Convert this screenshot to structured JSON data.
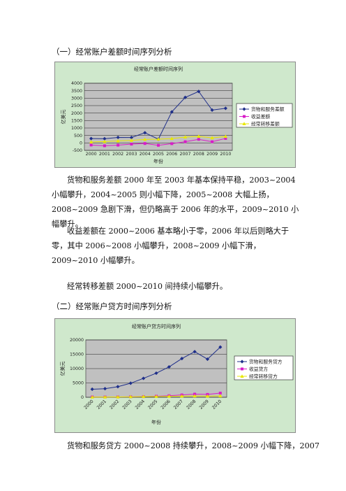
{
  "section1": {
    "heading": "（一）经常账户差额时间序列分析",
    "paragraphs": [
      "货物和服务差额 2000 年至 2003 年基本保持平稳，2003~2004 小幅攀升，2004~2005 则小幅下降，2005~2008 大幅上扬，2008~2009 急剧下滑，但仍略高于 2006 年的水平，2009~2010 小幅攀升。",
      "收益差额在 2000~2006 基本略小于零，2006 年以后则略大于零，其中 2006~2008 小幅攀升，2008~2009 小幅下滑，2009~2010 小幅攀升。",
      "经常转移差额 2000~2010 间持续小幅攀升。"
    ]
  },
  "section2": {
    "heading": "（二）经常账户贷方时间序列分析",
    "paragraphs": [
      "货物和服务贷方 2000~2008 持续攀升，2008~2009 小幅下降，2007"
    ]
  },
  "chart_data": [
    {
      "type": "line",
      "title": "经常账户差额时间序列",
      "xlabel": "年份",
      "ylabel": "亿美元",
      "x": [
        "2000",
        "2001",
        "2002",
        "2003",
        "2004",
        "2005",
        "2006",
        "2007",
        "2008",
        "2009",
        "2010"
      ],
      "ylim": [
        -500,
        4000
      ],
      "yticks": [
        -500,
        0,
        500,
        1000,
        1500,
        2000,
        2500,
        3000,
        3500,
        4000
      ],
      "grid": true,
      "legend": "right",
      "series": [
        {
          "name": "货物和服务差额",
          "color": "#1f2f8a",
          "marker": "diamond",
          "values": [
            290,
            280,
            370,
            360,
            680,
            250,
            2080,
            3050,
            3450,
            2200,
            2320
          ]
        },
        {
          "name": "收益差额",
          "color": "#d81cc8",
          "marker": "square",
          "values": [
            -140,
            -190,
            -150,
            -80,
            -40,
            -160,
            -50,
            80,
            240,
            80,
            300
          ]
        },
        {
          "name": "经常转移差额",
          "color": "#e8e800",
          "marker": "triangle",
          "values": [
            60,
            90,
            130,
            170,
            230,
            250,
            290,
            390,
            440,
            340,
            430
          ]
        }
      ]
    },
    {
      "type": "line",
      "title": "经常账户贷方时间序列",
      "xlabel": "年份",
      "ylabel": "亿美元",
      "x": [
        "2000",
        "2001",
        "2002",
        "2003",
        "2004",
        "2005",
        "2006",
        "2007",
        "2008",
        "2009",
        "2010"
      ],
      "ylim": [
        0,
        20000
      ],
      "yticks": [
        0,
        5000,
        10000,
        15000,
        20000
      ],
      "grid": true,
      "legend": "right",
      "series": [
        {
          "name": "货物和服务贷方",
          "color": "#1f2f8a",
          "marker": "diamond",
          "values": [
            2800,
            3000,
            3700,
            4900,
            6600,
            8400,
            10600,
            13500,
            15900,
            13300,
            17500
          ]
        },
        {
          "name": "收益贷方",
          "color": "#d81cc8",
          "marker": "square",
          "values": [
            130,
            100,
            90,
            160,
            210,
            380,
            550,
            830,
            1100,
            1000,
            1450
          ]
        },
        {
          "name": "经常转移贷方",
          "color": "#e8e800",
          "marker": "triangle",
          "values": [
            60,
            90,
            120,
            180,
            250,
            260,
            330,
            400,
            450,
            390,
            490
          ]
        }
      ]
    }
  ]
}
